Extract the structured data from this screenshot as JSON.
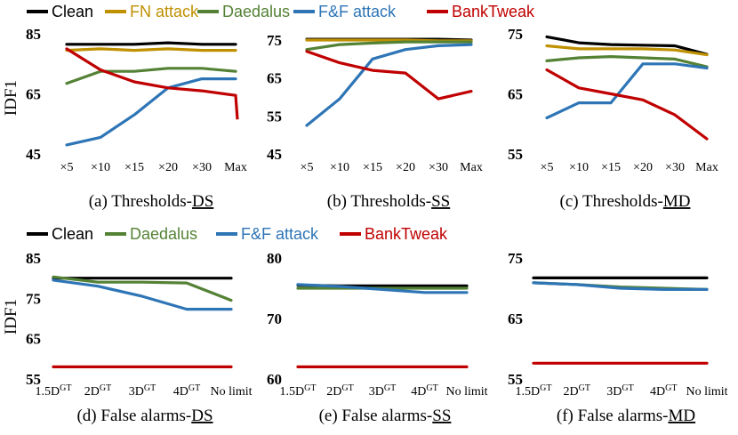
{
  "legend_top": [
    {
      "name": "Clean",
      "color": "#000000"
    },
    {
      "name": "FN attack",
      "color": "#bf9000"
    },
    {
      "name": "Daedalus",
      "color": "#548235"
    },
    {
      "name": "F&F attack",
      "color": "#2e75b6"
    },
    {
      "name": "BankTweak",
      "color": "#c00000"
    }
  ],
  "legend_bottom": [
    {
      "name": "Clean",
      "color": "#000000"
    },
    {
      "name": "Daedalus",
      "color": "#548235"
    },
    {
      "name": "F&F attack",
      "color": "#2e75b6"
    },
    {
      "name": "BankTweak",
      "color": "#c00000"
    }
  ],
  "ylabel": "IDF1",
  "chart_data": [
    {
      "type": "line",
      "caption_prefix": "(a) Thresholds-",
      "caption_underlined": "DS",
      "categories": [
        "×5",
        "×10",
        "×15",
        "×20",
        "×30",
        "Max"
      ],
      "ylim": [
        45,
        85
      ],
      "yticks": [
        45,
        65,
        85
      ],
      "series": [
        {
          "name": "Clean",
          "values": [
            81.5,
            81.5,
            81.5,
            82.0,
            81.5,
            81.5
          ]
        },
        {
          "name": "FN attack",
          "values": [
            79.5,
            80.0,
            79.5,
            80.0,
            79.5,
            79.5
          ]
        },
        {
          "name": "Daedalus",
          "values": [
            68.5,
            72.5,
            72.5,
            73.5,
            73.5,
            72.5
          ]
        },
        {
          "name": "F&F attack",
          "values": [
            48.0,
            50.5,
            58.0,
            67.0,
            70.0,
            70.0
          ]
        },
        {
          "name": "BankTweak",
          "values": [
            80.0,
            73.0,
            69.0,
            67.0,
            66.0,
            64.5
          ]
        }
      ],
      "tail_series": {
        "name": "BankTweak",
        "values": [
          64.5,
          56.5
        ]
      }
    },
    {
      "type": "line",
      "caption_prefix": "(b) Thresholds-",
      "caption_underlined": "SS",
      "categories": [
        "×5",
        "×10",
        "×15",
        "×20",
        "×30",
        "Max"
      ],
      "ylim": [
        45,
        75
      ],
      "yticks": [
        45,
        55,
        65,
        75
      ],
      "series": [
        {
          "name": "Clean",
          "values": [
            75.2,
            75.2,
            75.2,
            75.2,
            75.2,
            75.0
          ]
        },
        {
          "name": "FN attack",
          "values": [
            75.0,
            75.0,
            75.0,
            75.0,
            74.8,
            74.8
          ]
        },
        {
          "name": "Daedalus",
          "values": [
            72.5,
            73.8,
            74.2,
            74.5,
            74.5,
            74.5
          ]
        },
        {
          "name": "F&F attack",
          "values": [
            52.5,
            59.5,
            70.0,
            72.5,
            73.5,
            73.8
          ]
        },
        {
          "name": "BankTweak",
          "values": [
            72.0,
            69.0,
            67.0,
            66.3,
            59.5,
            61.5
          ]
        }
      ]
    },
    {
      "type": "line",
      "caption_prefix": "(c) Thresholds-",
      "caption_underlined": "MD",
      "categories": [
        "×5",
        "×10",
        "×15",
        "×20",
        "×30",
        "Max"
      ],
      "ylim": [
        55,
        75
      ],
      "yticks": [
        55,
        65,
        75
      ],
      "series": [
        {
          "name": "Clean",
          "values": [
            74.5,
            73.5,
            73.2,
            73.1,
            73.0,
            71.6
          ]
        },
        {
          "name": "FN attack",
          "values": [
            73.0,
            72.5,
            72.5,
            72.5,
            72.3,
            71.5
          ]
        },
        {
          "name": "Daedalus",
          "values": [
            70.5,
            71.0,
            71.2,
            71.0,
            70.8,
            69.5
          ]
        },
        {
          "name": "F&F attack",
          "values": [
            61.0,
            63.5,
            63.5,
            70.0,
            70.0,
            69.3
          ]
        },
        {
          "name": "BankTweak",
          "values": [
            69.0,
            66.0,
            65.0,
            64.0,
            61.5,
            57.5
          ]
        }
      ]
    },
    {
      "type": "line",
      "caption_prefix": "(d) False alarms-",
      "caption_underlined": "DS",
      "categories": [
        "1.5D",
        "2D",
        "3D",
        "4D",
        "No limit"
      ],
      "superscripts": [
        "GT",
        "GT",
        "GT",
        "GT",
        ""
      ],
      "ylim": [
        55,
        85
      ],
      "yticks": [
        55,
        65,
        75,
        85
      ],
      "series": [
        {
          "name": "Clean",
          "values": [
            80.0,
            80.0,
            80.0,
            80.0,
            80.0
          ]
        },
        {
          "name": "Daedalus",
          "values": [
            80.3,
            79.0,
            79.0,
            78.8,
            74.5
          ]
        },
        {
          "name": "F&F attack",
          "values": [
            79.5,
            78.0,
            75.5,
            72.3,
            72.3
          ]
        },
        {
          "name": "BankTweak",
          "values": [
            58.0,
            58.0,
            58.0,
            58.0,
            58.0
          ]
        }
      ]
    },
    {
      "type": "line",
      "caption_prefix": "(e) False alarms-",
      "caption_underlined": "SS",
      "categories": [
        "1.5D",
        "2D",
        "3D",
        "4D",
        "No limit"
      ],
      "superscripts": [
        "GT",
        "GT",
        "GT",
        "GT",
        ""
      ],
      "ylim": [
        60,
        80
      ],
      "yticks": [
        60,
        70,
        80
      ],
      "series": [
        {
          "name": "Clean",
          "values": [
            75.5,
            75.4,
            75.4,
            75.4,
            75.4
          ]
        },
        {
          "name": "Daedalus",
          "values": [
            75.0,
            75.0,
            75.0,
            75.0,
            75.0
          ]
        },
        {
          "name": "F&F attack",
          "values": [
            75.6,
            75.3,
            74.8,
            74.3,
            74.3
          ]
        },
        {
          "name": "BankTweak",
          "values": [
            62.0,
            62.0,
            62.0,
            62.0,
            62.0
          ]
        }
      ]
    },
    {
      "type": "line",
      "caption_prefix": "(f) False alarms-",
      "caption_underlined": "MD",
      "categories": [
        "1.5D",
        "2D",
        "3D",
        "4D",
        "No limit"
      ],
      "superscripts": [
        "GT",
        "GT",
        "GT",
        "GT",
        ""
      ],
      "ylim": [
        55,
        75
      ],
      "yticks": [
        55,
        65,
        75
      ],
      "series": [
        {
          "name": "Clean",
          "values": [
            71.7,
            71.7,
            71.7,
            71.7,
            71.7
          ]
        },
        {
          "name": "Daedalus",
          "values": [
            70.9,
            70.6,
            70.2,
            70.0,
            69.8
          ]
        },
        {
          "name": "F&F attack",
          "values": [
            70.9,
            70.6,
            70.0,
            69.8,
            69.8
          ]
        },
        {
          "name": "BankTweak",
          "values": [
            57.6,
            57.6,
            57.6,
            57.6,
            57.6
          ]
        }
      ]
    }
  ]
}
